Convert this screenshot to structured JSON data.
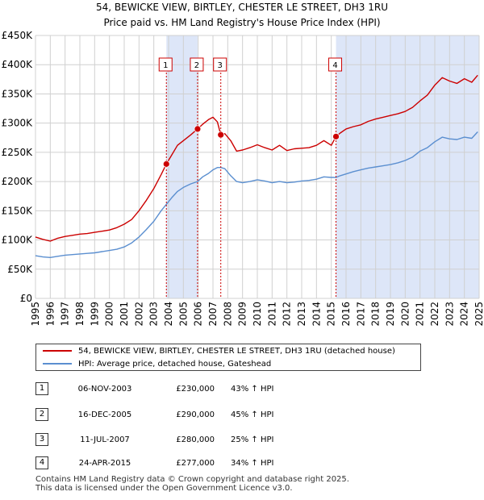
{
  "title": {
    "line1": "54, BEWICKE VIEW, BIRTLEY, CHESTER LE STREET, DH3 1RU",
    "line2": "Price paid vs. HM Land Registry's House Price Index (HPI)"
  },
  "colors": {
    "property": "#cc0000",
    "hpi": "#5b8fd0",
    "band": "#dde6f8",
    "grid": "#d0d0d0"
  },
  "legend": {
    "property_label": "54, BEWICKE VIEW, BIRTLEY, CHESTER LE STREET, DH3 1RU (detached house)",
    "hpi_label": "HPI: Average price, detached house, Gateshead"
  },
  "sales": [
    {
      "num": "1",
      "date": "06-NOV-2003",
      "price": "£230,000",
      "hpi": "43% ↑ HPI"
    },
    {
      "num": "2",
      "date": "16-DEC-2005",
      "price": "£290,000",
      "hpi": "45% ↑ HPI"
    },
    {
      "num": "3",
      "date": "11-JUL-2007",
      "price": "£280,000",
      "hpi": "25% ↑ HPI"
    },
    {
      "num": "4",
      "date": "24-APR-2015",
      "price": "£277,000",
      "hpi": "34% ↑ HPI"
    }
  ],
  "footer": {
    "line1": "Contains HM Land Registry data © Crown copyright and database right 2025.",
    "line2": "This data is licensed under the Open Government Licence v3.0."
  },
  "chart_data": {
    "type": "line",
    "title": "Price paid vs. HM Land Registry's House Price Index (HPI)",
    "xlim": [
      1995,
      2025
    ],
    "ylim": [
      0,
      450000
    ],
    "ytick_values": [
      0,
      50000,
      100000,
      150000,
      200000,
      250000,
      300000,
      350000,
      400000,
      450000
    ],
    "ytick_labels": [
      "£0",
      "£50K",
      "£100K",
      "£150K",
      "£200K",
      "£250K",
      "£300K",
      "£350K",
      "£400K",
      "£450K"
    ],
    "xtick_labels": [
      "1995",
      "1996",
      "1997",
      "1998",
      "1999",
      "2000",
      "2001",
      "2002",
      "2003",
      "2004",
      "2005",
      "2006",
      "2007",
      "2008",
      "2009",
      "2010",
      "2011",
      "2012",
      "2013",
      "2014",
      "2015",
      "2016",
      "2017",
      "2018",
      "2019",
      "2020",
      "2021",
      "2022",
      "2023",
      "2024",
      "2025"
    ],
    "shaded_bands": [
      [
        2003.85,
        2005.96
      ],
      [
        2015.32,
        2025.0
      ]
    ],
    "sale_markers": [
      {
        "label": "1",
        "x": 2003.85,
        "y": 230000
      },
      {
        "label": "2",
        "x": 2005.96,
        "y": 290000
      },
      {
        "label": "3",
        "x": 2007.53,
        "y": 280000
      },
      {
        "label": "4",
        "x": 2015.32,
        "y": 277000
      }
    ],
    "series": [
      {
        "name": "54, BEWICKE VIEW, BIRTLEY, CHESTER LE STREET, DH3 1RU (detached house)",
        "x": [
          1995.0,
          1995.5,
          1996.0,
          1996.5,
          1997.0,
          1997.5,
          1998.0,
          1998.5,
          1999.0,
          1999.5,
          2000.0,
          2000.5,
          2001.0,
          2001.5,
          2002.0,
          2002.5,
          2003.0,
          2003.5,
          2003.85,
          2004.2,
          2004.6,
          2005.0,
          2005.5,
          2005.96,
          2006.3,
          2006.7,
          2007.0,
          2007.3,
          2007.53,
          2007.8,
          2008.2,
          2008.6,
          2009.0,
          2009.5,
          2010.0,
          2010.5,
          2011.0,
          2011.5,
          2012.0,
          2012.5,
          2013.0,
          2013.5,
          2014.0,
          2014.5,
          2015.0,
          2015.32,
          2015.6,
          2016.0,
          2016.5,
          2017.0,
          2017.5,
          2018.0,
          2018.5,
          2019.0,
          2019.5,
          2020.0,
          2020.5,
          2021.0,
          2021.5,
          2022.0,
          2022.5,
          2023.0,
          2023.5,
          2024.0,
          2024.5,
          2024.9
        ],
        "y": [
          105000,
          101000,
          98000,
          103000,
          106000,
          108000,
          110000,
          111000,
          113000,
          115000,
          117000,
          121000,
          127000,
          135000,
          150000,
          168000,
          188000,
          212000,
          230000,
          245000,
          262000,
          270000,
          280000,
          290000,
          298000,
          306000,
          310000,
          302000,
          280000,
          282000,
          270000,
          252000,
          254000,
          258000,
          263000,
          258000,
          254000,
          262000,
          253000,
          256000,
          257000,
          258000,
          262000,
          270000,
          262000,
          277000,
          283000,
          290000,
          294000,
          297000,
          303000,
          307000,
          310000,
          313000,
          316000,
          320000,
          327000,
          338000,
          348000,
          365000,
          378000,
          372000,
          368000,
          376000,
          370000,
          382000
        ]
      },
      {
        "name": "HPI: Average price, detached house, Gateshead",
        "x": [
          1995.0,
          1995.5,
          1996.0,
          1996.5,
          1997.0,
          1997.5,
          1998.0,
          1998.5,
          1999.0,
          1999.5,
          2000.0,
          2000.5,
          2001.0,
          2001.5,
          2002.0,
          2002.5,
          2003.0,
          2003.5,
          2003.85,
          2004.2,
          2004.6,
          2005.0,
          2005.5,
          2005.96,
          2006.3,
          2006.7,
          2007.0,
          2007.3,
          2007.53,
          2007.8,
          2008.2,
          2008.6,
          2009.0,
          2009.5,
          2010.0,
          2010.5,
          2011.0,
          2011.5,
          2012.0,
          2012.5,
          2013.0,
          2013.5,
          2014.0,
          2014.5,
          2015.0,
          2015.32,
          2015.6,
          2016.0,
          2016.5,
          2017.0,
          2017.5,
          2018.0,
          2018.5,
          2019.0,
          2019.5,
          2020.0,
          2020.5,
          2021.0,
          2021.5,
          2022.0,
          2022.5,
          2023.0,
          2023.5,
          2024.0,
          2024.5,
          2024.9
        ],
        "y": [
          73000,
          71000,
          70000,
          72000,
          74000,
          75000,
          76000,
          77000,
          78000,
          80000,
          82000,
          84000,
          88000,
          95000,
          105000,
          118000,
          132000,
          150000,
          161000,
          172000,
          183000,
          190000,
          196000,
          200000,
          208000,
          214000,
          220000,
          224000,
          224000,
          222000,
          210000,
          200000,
          198000,
          200000,
          203000,
          201000,
          198000,
          200000,
          198000,
          199000,
          201000,
          202000,
          204000,
          208000,
          207000,
          207000,
          210000,
          213000,
          217000,
          220000,
          223000,
          225000,
          227000,
          229000,
          232000,
          236000,
          242000,
          252000,
          258000,
          268000,
          276000,
          273000,
          272000,
          276000,
          274000,
          285000
        ]
      }
    ]
  }
}
